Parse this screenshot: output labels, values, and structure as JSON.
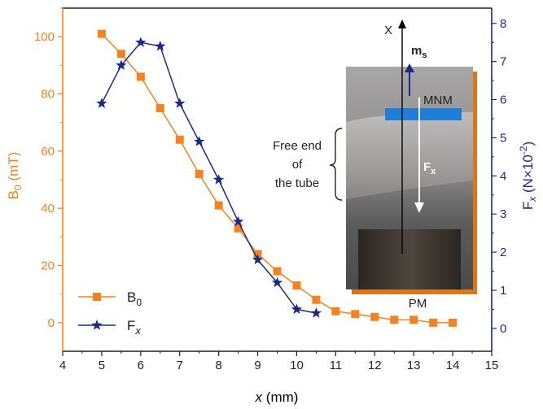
{
  "chart_data": {
    "type": "line",
    "x_axis": {
      "label": "x",
      "unit": "(mm)",
      "range": [
        4,
        15
      ],
      "ticks": [
        "4",
        "5",
        "6",
        "7",
        "8",
        "9",
        "10",
        "11",
        "12",
        "13",
        "14",
        "15"
      ]
    },
    "y_left": {
      "label_main": "B",
      "label_sub": "0",
      "unit": "(mT)",
      "range": [
        -10,
        110
      ],
      "ticks": [
        "0",
        "20",
        "40",
        "60",
        "80",
        "100"
      ],
      "color": "#f58220"
    },
    "y_right": {
      "label_main": "F",
      "label_var": "x",
      "unit": "(N×10",
      "unit_sup": "-2",
      "unit_close": ")",
      "range": [
        -0.6,
        8.4
      ],
      "ticks": [
        "0",
        "1",
        "2",
        "3",
        "4",
        "5",
        "6",
        "7",
        "8"
      ],
      "color": "#1a2a8a"
    },
    "series": [
      {
        "name": "B",
        "name_sub": "0",
        "axis": "left",
        "marker": "square",
        "color": "#f58220",
        "x": [
          5,
          5.5,
          6,
          6.5,
          7,
          7.5,
          8,
          8.5,
          9,
          9.5,
          10,
          10.5,
          11,
          11.5,
          12,
          12.5,
          13,
          13.5,
          14
        ],
        "y": [
          101,
          94,
          86,
          75,
          64,
          52,
          41,
          33,
          24,
          18,
          13,
          8,
          4,
          3,
          2,
          1,
          1,
          0,
          0
        ]
      },
      {
        "name": "F",
        "name_var": "x",
        "axis": "right",
        "marker": "star",
        "color": "#1a2a8a",
        "x": [
          5,
          5.5,
          6,
          6.5,
          7,
          7.5,
          8,
          8.5,
          9,
          9.5,
          10,
          10.5
        ],
        "y": [
          5.9,
          6.9,
          7.5,
          7.4,
          5.9,
          4.9,
          3.9,
          2.8,
          1.8,
          1.2,
          0.5,
          0.4
        ]
      }
    ],
    "legend_position": "bottom-left",
    "inset": {
      "labels": {
        "axis_x": "X",
        "moment": "m",
        "moment_sub": "s",
        "mnm": "MNM",
        "force": "F",
        "force_sub": "x",
        "free_end": [
          "Free end",
          "of",
          "the tube"
        ],
        "pm": "PM"
      },
      "colors": {
        "mnm_bar": "#1e7fd8",
        "moment_arrow": "#1a2a8a",
        "force_arrow": "#ffffff",
        "frame": "#d9781a"
      }
    }
  }
}
